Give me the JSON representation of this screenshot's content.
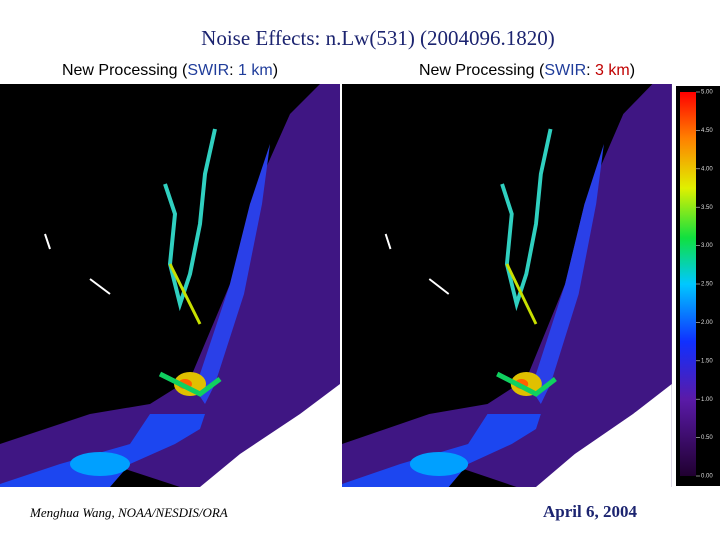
{
  "title": "Noise Effects: n.Lw(531) (2004096.1820)",
  "panels": [
    {
      "title_parts": [
        "New Processing (",
        "SWIR",
        ": ",
        "1 km",
        ")"
      ]
    },
    {
      "title_parts": [
        "New Processing (",
        "SWIR",
        ": ",
        "3 km",
        ")"
      ]
    }
  ],
  "colorbar": {
    "lim": [
      0,
      5
    ],
    "ticks": [
      {
        "value": 5,
        "label": "5.00"
      },
      {
        "value": 4.5,
        "label": "4.50"
      },
      {
        "value": 4,
        "label": "4.00"
      },
      {
        "value": 3.5,
        "label": "3.50"
      },
      {
        "value": 3,
        "label": "3.00"
      },
      {
        "value": 2.5,
        "label": "2.50"
      },
      {
        "value": 2,
        "label": "2.00"
      },
      {
        "value": 1.5,
        "label": "1.50"
      },
      {
        "value": 1,
        "label": "1.00"
      },
      {
        "value": 0.5,
        "label": "0.50"
      },
      {
        "value": 0,
        "label": "0.00"
      }
    ]
  },
  "footer": {
    "author": "Menghua Wang, NOAA/NESDIS/ORA",
    "date": "April 6, 2004"
  }
}
